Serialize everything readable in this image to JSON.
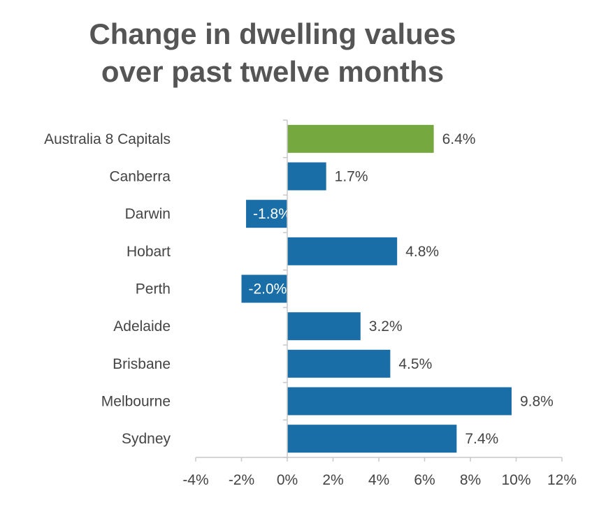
{
  "title_lines": [
    "Change in dwelling values",
    "over past twelve months"
  ],
  "colors": {
    "highlight": "#76a840",
    "default": "#1a6ea8",
    "axis": "#c8c8c8",
    "text": "#444444"
  },
  "chart_data": {
    "type": "bar",
    "orientation": "horizontal",
    "title": "Change in dwelling values over past twelve months",
    "categories": [
      "Australia  8 Capitals",
      "Canberra",
      "Darwin",
      "Hobart",
      "Perth",
      "Adelaide",
      "Brisbane",
      "Melbourne",
      "Sydney"
    ],
    "values": [
      6.4,
      1.7,
      -1.8,
      4.8,
      -2.0,
      3.2,
      4.5,
      9.8,
      7.4
    ],
    "value_labels": [
      "6.4%",
      "1.7%",
      "-1.8%",
      "4.8%",
      "-2.0%",
      "3.2%",
      "4.5%",
      "9.8%",
      "7.4%"
    ],
    "highlight_index": 0,
    "xlim": [
      -4,
      12
    ],
    "xticks": [
      -4,
      -2,
      0,
      2,
      4,
      6,
      8,
      10,
      12
    ],
    "xtick_labels": [
      "-4%",
      "-2%",
      "0%",
      "2%",
      "4%",
      "6%",
      "8%",
      "10%",
      "12%"
    ],
    "xlabel": "",
    "ylabel": "",
    "grid": false,
    "legend": "none"
  }
}
